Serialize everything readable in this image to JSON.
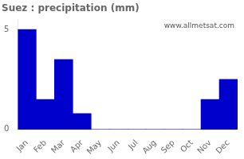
{
  "chart_data": {
    "type": "bar",
    "title": "Suez : precipitation (mm)",
    "categories": [
      "Jan",
      "Feb",
      "Mar",
      "Apr",
      "May",
      "Jun",
      "Jul",
      "Aug",
      "Sep",
      "Oct",
      "Nov",
      "Dec"
    ],
    "values": [
      5.0,
      1.5,
      3.5,
      0.8,
      0.0,
      0.0,
      0.0,
      0.0,
      0.0,
      0.0,
      1.5,
      2.5
    ],
    "color": "#0000CC",
    "ylim": [
      0,
      5.5
    ],
    "yticks": [
      0,
      5
    ],
    "grid": false,
    "annotation": "www.allmetsat.com"
  }
}
